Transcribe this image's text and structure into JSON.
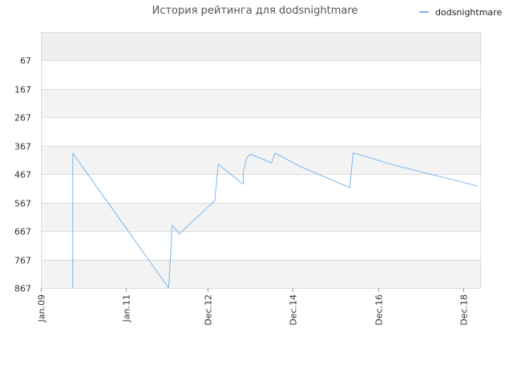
{
  "chart_data": {
    "type": "line",
    "title": "История рейтинга для dodsnightmare",
    "xlabel": "",
    "ylabel": "",
    "y_inverted": true,
    "ylim": [
      867,
      -33
    ],
    "y_ticks": [
      67,
      167,
      267,
      367,
      467,
      567,
      667,
      767,
      867
    ],
    "x_range": [
      "2009-01",
      "2019-05"
    ],
    "x_ticks": [
      {
        "label": "Jan.09",
        "date": "2009-01"
      },
      {
        "label": "Jan.11",
        "date": "2011-01"
      },
      {
        "label": "Dec.12",
        "date": "2012-12"
      },
      {
        "label": "Dec.14",
        "date": "2014-12"
      },
      {
        "label": "Dec.16",
        "date": "2016-12"
      },
      {
        "label": "Dec.18",
        "date": "2018-12"
      }
    ],
    "grid": true,
    "legend_position": "top-right",
    "series": [
      {
        "name": "dodsnightmare",
        "color": "#7cb5ec",
        "points": [
          {
            "x": "2009-10",
            "y": 867
          },
          {
            "x": "2009-10",
            "y": 400
          },
          {
            "x": "2009-10",
            "y": 393
          },
          {
            "x": "2012-01",
            "y": 867
          },
          {
            "x": "2012-02",
            "y": 647
          },
          {
            "x": "2012-04",
            "y": 677
          },
          {
            "x": "2013-02",
            "y": 560
          },
          {
            "x": "2013-03",
            "y": 432
          },
          {
            "x": "2013-10",
            "y": 502
          },
          {
            "x": "2013-10",
            "y": 458
          },
          {
            "x": "2013-11",
            "y": 410
          },
          {
            "x": "2013-12",
            "y": 396
          },
          {
            "x": "2014-06",
            "y": 427
          },
          {
            "x": "2014-07",
            "y": 393
          },
          {
            "x": "2015-02",
            "y": 439
          },
          {
            "x": "2016-04",
            "y": 514
          },
          {
            "x": "2016-05",
            "y": 392
          },
          {
            "x": "2017-04",
            "y": 433
          },
          {
            "x": "2019-04",
            "y": 508
          }
        ]
      }
    ]
  }
}
